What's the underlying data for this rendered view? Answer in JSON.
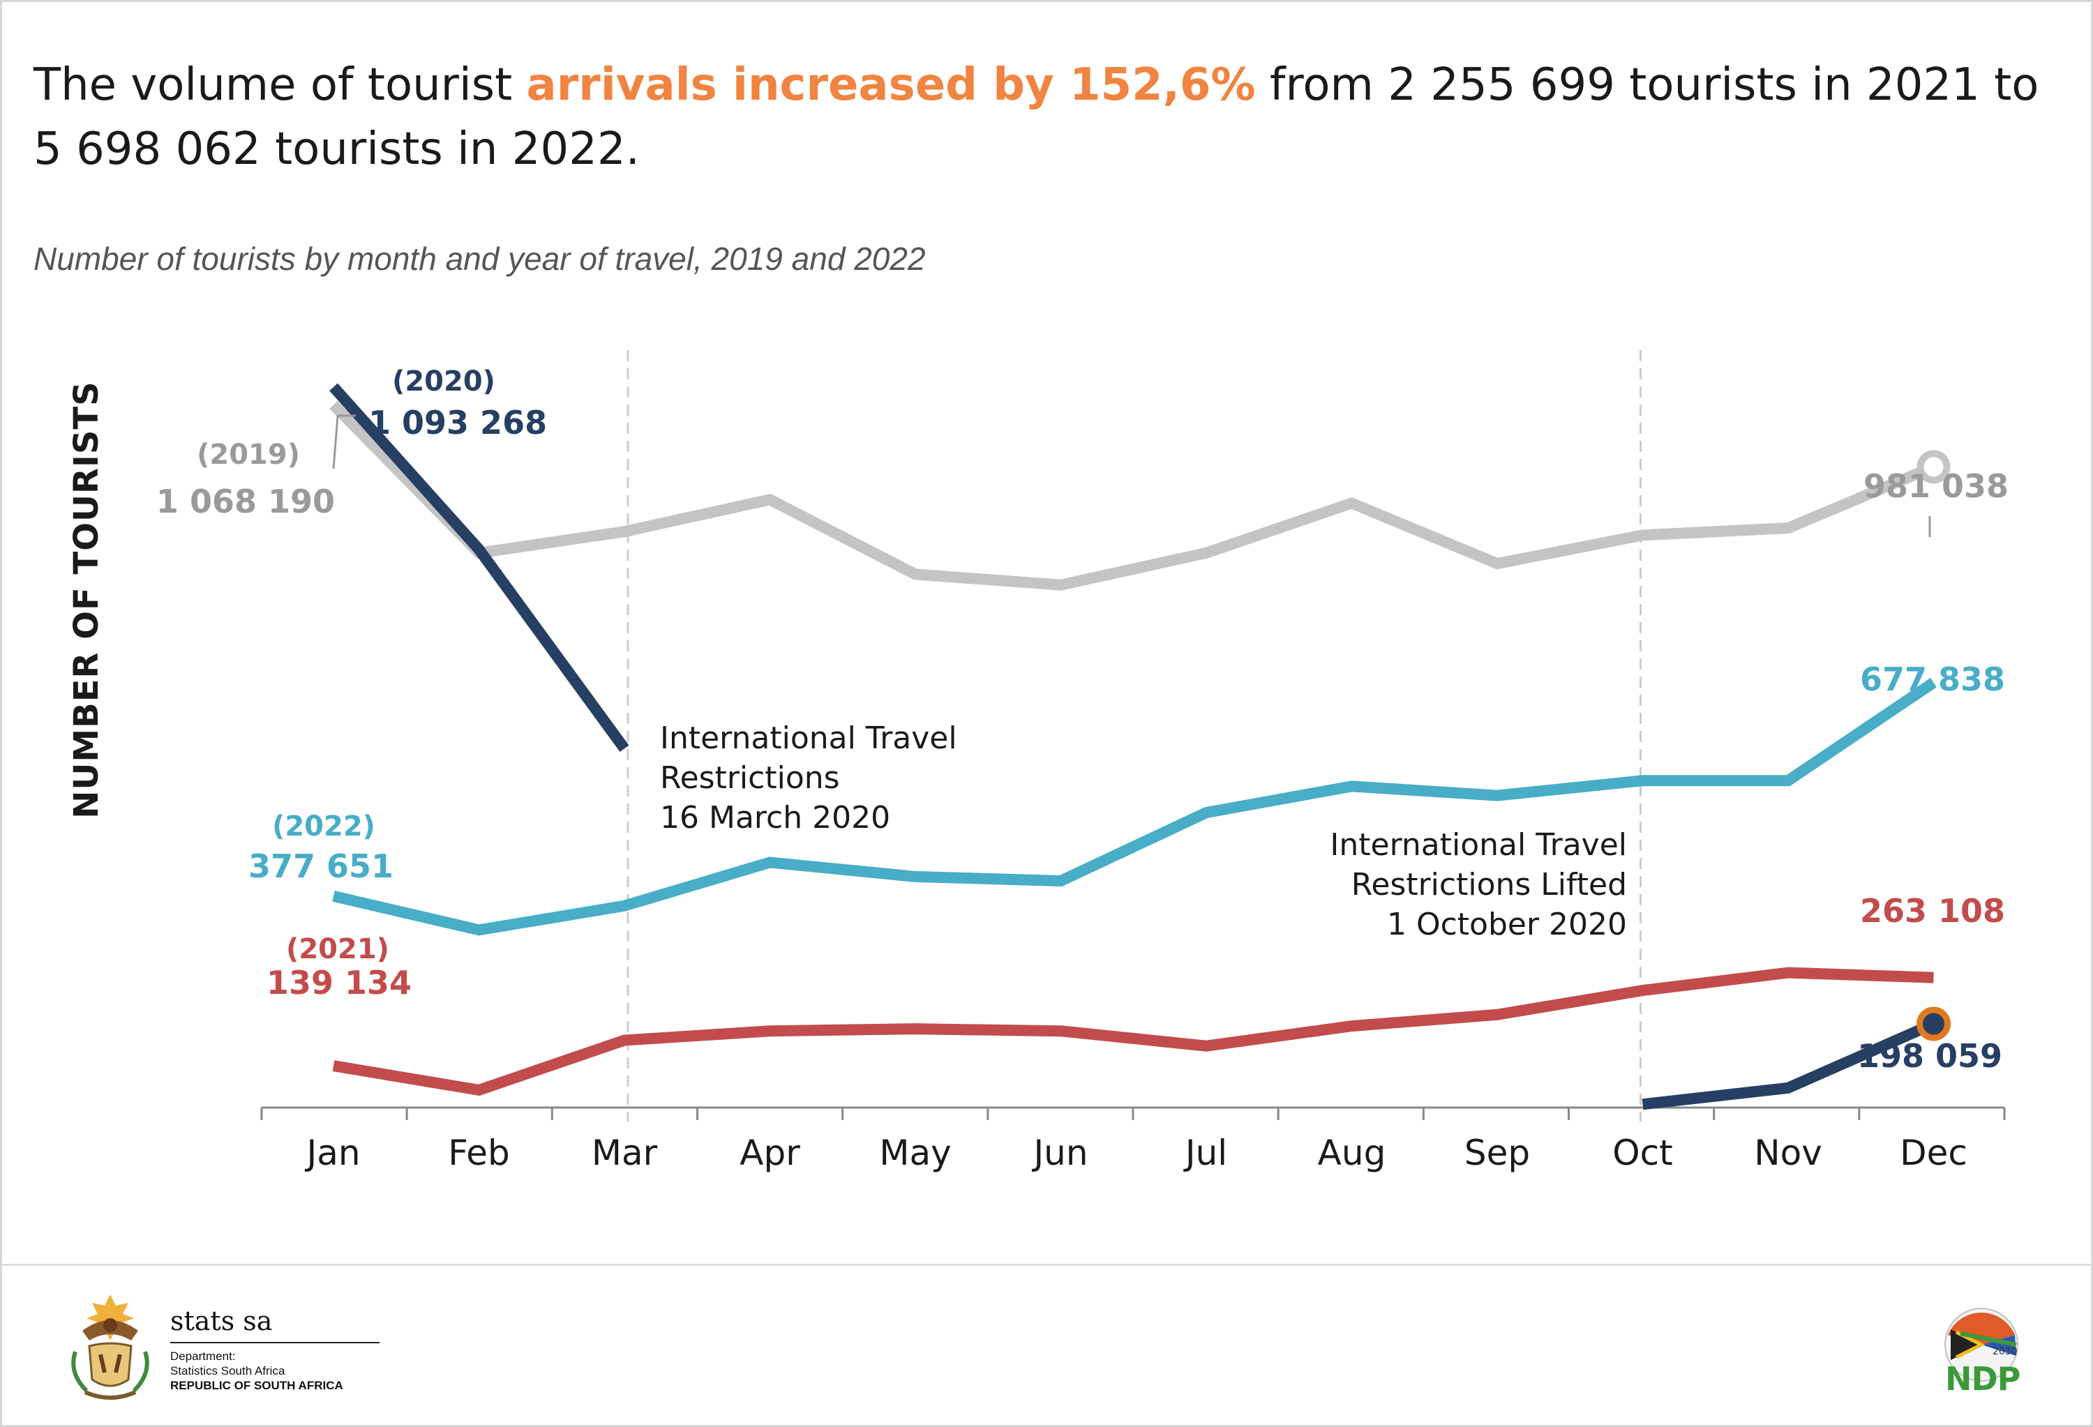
{
  "headline": {
    "part1": "The volume of tourist ",
    "highlight": "arrivals increased by 152,6%",
    "part2": " from 2 255 699 tourists in 2021 to",
    "part3": "5 698 062 tourists in 2022."
  },
  "subtitle": "Number of tourists by month and year of travel, 2019 and 2022",
  "footer": {
    "brand": "stats sa",
    "dept_line1": "Department:",
    "dept_line2": "Statistics South Africa",
    "dept_line3": "REPUBLIC OF SOUTH AFRICA",
    "ndp_label": "NDP",
    "ndp_year": "2030"
  },
  "colors": {
    "highlight": "#f08440",
    "s2019": "#c4c4c4",
    "s2020": "#263f63",
    "s2021": "#c24c4c",
    "s2022": "#48adc7",
    "marker_ring": "#e07a1f",
    "guide": "#cccccc",
    "axis": "#888888"
  },
  "chart_data": {
    "type": "line",
    "ylabel": "NUMBER OF TOURISTS",
    "xlabel": "",
    "categories": [
      "Jan",
      "Feb",
      "Mar",
      "Apr",
      "May",
      "Jun",
      "Jul",
      "Aug",
      "Sep",
      "Oct",
      "Nov",
      "Dec"
    ],
    "ylim": [
      0,
      1200000
    ],
    "grid": false,
    "series": [
      {
        "name": "2019",
        "color_key": "s2019",
        "values": [
          1068190,
          860000,
          890000,
          935000,
          830000,
          815000,
          860000,
          930000,
          845000,
          885000,
          895000,
          981038
        ],
        "labels": [
          {
            "month": 0,
            "year_text": "(2019)",
            "value_text": "1 068 190"
          },
          {
            "month": 11,
            "value_text": "981 038"
          }
        ]
      },
      {
        "name": "2020",
        "color_key": "s2020",
        "values": [
          1093268,
          865000,
          585000,
          null,
          null,
          null,
          null,
          null,
          null,
          85000,
          108000,
          198059
        ],
        "labels": [
          {
            "month": 0,
            "year_text": "(2020)",
            "value_text": "1 093 268"
          },
          {
            "month": 11,
            "value_text": "198 059"
          }
        ]
      },
      {
        "name": "2021",
        "color_key": "s2021",
        "values": [
          139134,
          105000,
          175000,
          188000,
          191000,
          188000,
          167000,
          195000,
          211000,
          245000,
          270000,
          263108
        ],
        "labels": [
          {
            "month": 0,
            "year_text": "(2021)",
            "value_text": "139 134"
          },
          {
            "month": 11,
            "value_text": "263 108"
          }
        ]
      },
      {
        "name": "2022",
        "color_key": "s2022",
        "values": [
          377651,
          330000,
          364000,
          425000,
          405000,
          399000,
          495000,
          532000,
          519000,
          540000,
          540000,
          677838
        ],
        "labels": [
          {
            "month": 0,
            "year_text": "(2022)",
            "value_text": "377 651"
          },
          {
            "month": 11,
            "value_text": "677 838"
          }
        ]
      }
    ],
    "annotations": [
      {
        "month": 2,
        "lines": [
          "International Travel",
          "Restrictions",
          "16 March 2020"
        ]
      },
      {
        "month": 9,
        "lines": [
          "International Travel",
          "Restrictions Lifted",
          "1 October 2020"
        ]
      }
    ]
  }
}
